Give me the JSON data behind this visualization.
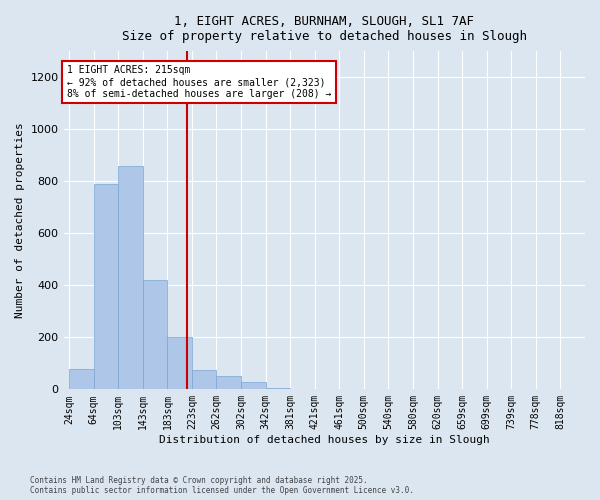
{
  "title_line1": "1, EIGHT ACRES, BURNHAM, SLOUGH, SL1 7AF",
  "title_line2": "Size of property relative to detached houses in Slough",
  "xlabel": "Distribution of detached houses by size in Slough",
  "ylabel": "Number of detached properties",
  "bar_left_edges": [
    24,
    64,
    103,
    143,
    183,
    223,
    262,
    302,
    342,
    381,
    421,
    461,
    500,
    540,
    580,
    620,
    659,
    699,
    739,
    778
  ],
  "bar_heights": [
    80,
    790,
    860,
    420,
    200,
    75,
    50,
    30,
    5,
    0,
    0,
    0,
    0,
    3,
    0,
    3,
    0,
    0,
    0,
    0
  ],
  "bar_widths": [
    40,
    39,
    40,
    40,
    40,
    39,
    40,
    40,
    39,
    40,
    40,
    39,
    40,
    40,
    40,
    39,
    40,
    40,
    39,
    40
  ],
  "tick_labels": [
    "24sqm",
    "64sqm",
    "103sqm",
    "143sqm",
    "183sqm",
    "223sqm",
    "262sqm",
    "302sqm",
    "342sqm",
    "381sqm",
    "421sqm",
    "461sqm",
    "500sqm",
    "540sqm",
    "580sqm",
    "620sqm",
    "659sqm",
    "699sqm",
    "739sqm",
    "778sqm",
    "818sqm"
  ],
  "tick_positions": [
    24,
    64,
    103,
    143,
    183,
    223,
    262,
    302,
    342,
    381,
    421,
    461,
    500,
    540,
    580,
    620,
    659,
    699,
    739,
    778,
    818
  ],
  "bar_color": "#aec6e8",
  "bar_edge_color": "#7aa5d2",
  "property_line_x": 215,
  "property_label": "1 EIGHT ACRES: 215sqm",
  "annotation_line1": "← 92% of detached houses are smaller (2,323)",
  "annotation_line2": "8% of semi-detached houses are larger (208) →",
  "annotation_box_color": "#ffffff",
  "annotation_box_edge": "#cc0000",
  "property_line_color": "#cc0000",
  "ylim": [
    0,
    1300
  ],
  "yticks": [
    0,
    200,
    400,
    600,
    800,
    1000,
    1200
  ],
  "xlim": [
    15,
    858
  ],
  "background_color": "#dce6f1",
  "grid_color": "#ffffff",
  "footer_line1": "Contains HM Land Registry data © Crown copyright and database right 2025.",
  "footer_line2": "Contains public sector information licensed under the Open Government Licence v3.0."
}
